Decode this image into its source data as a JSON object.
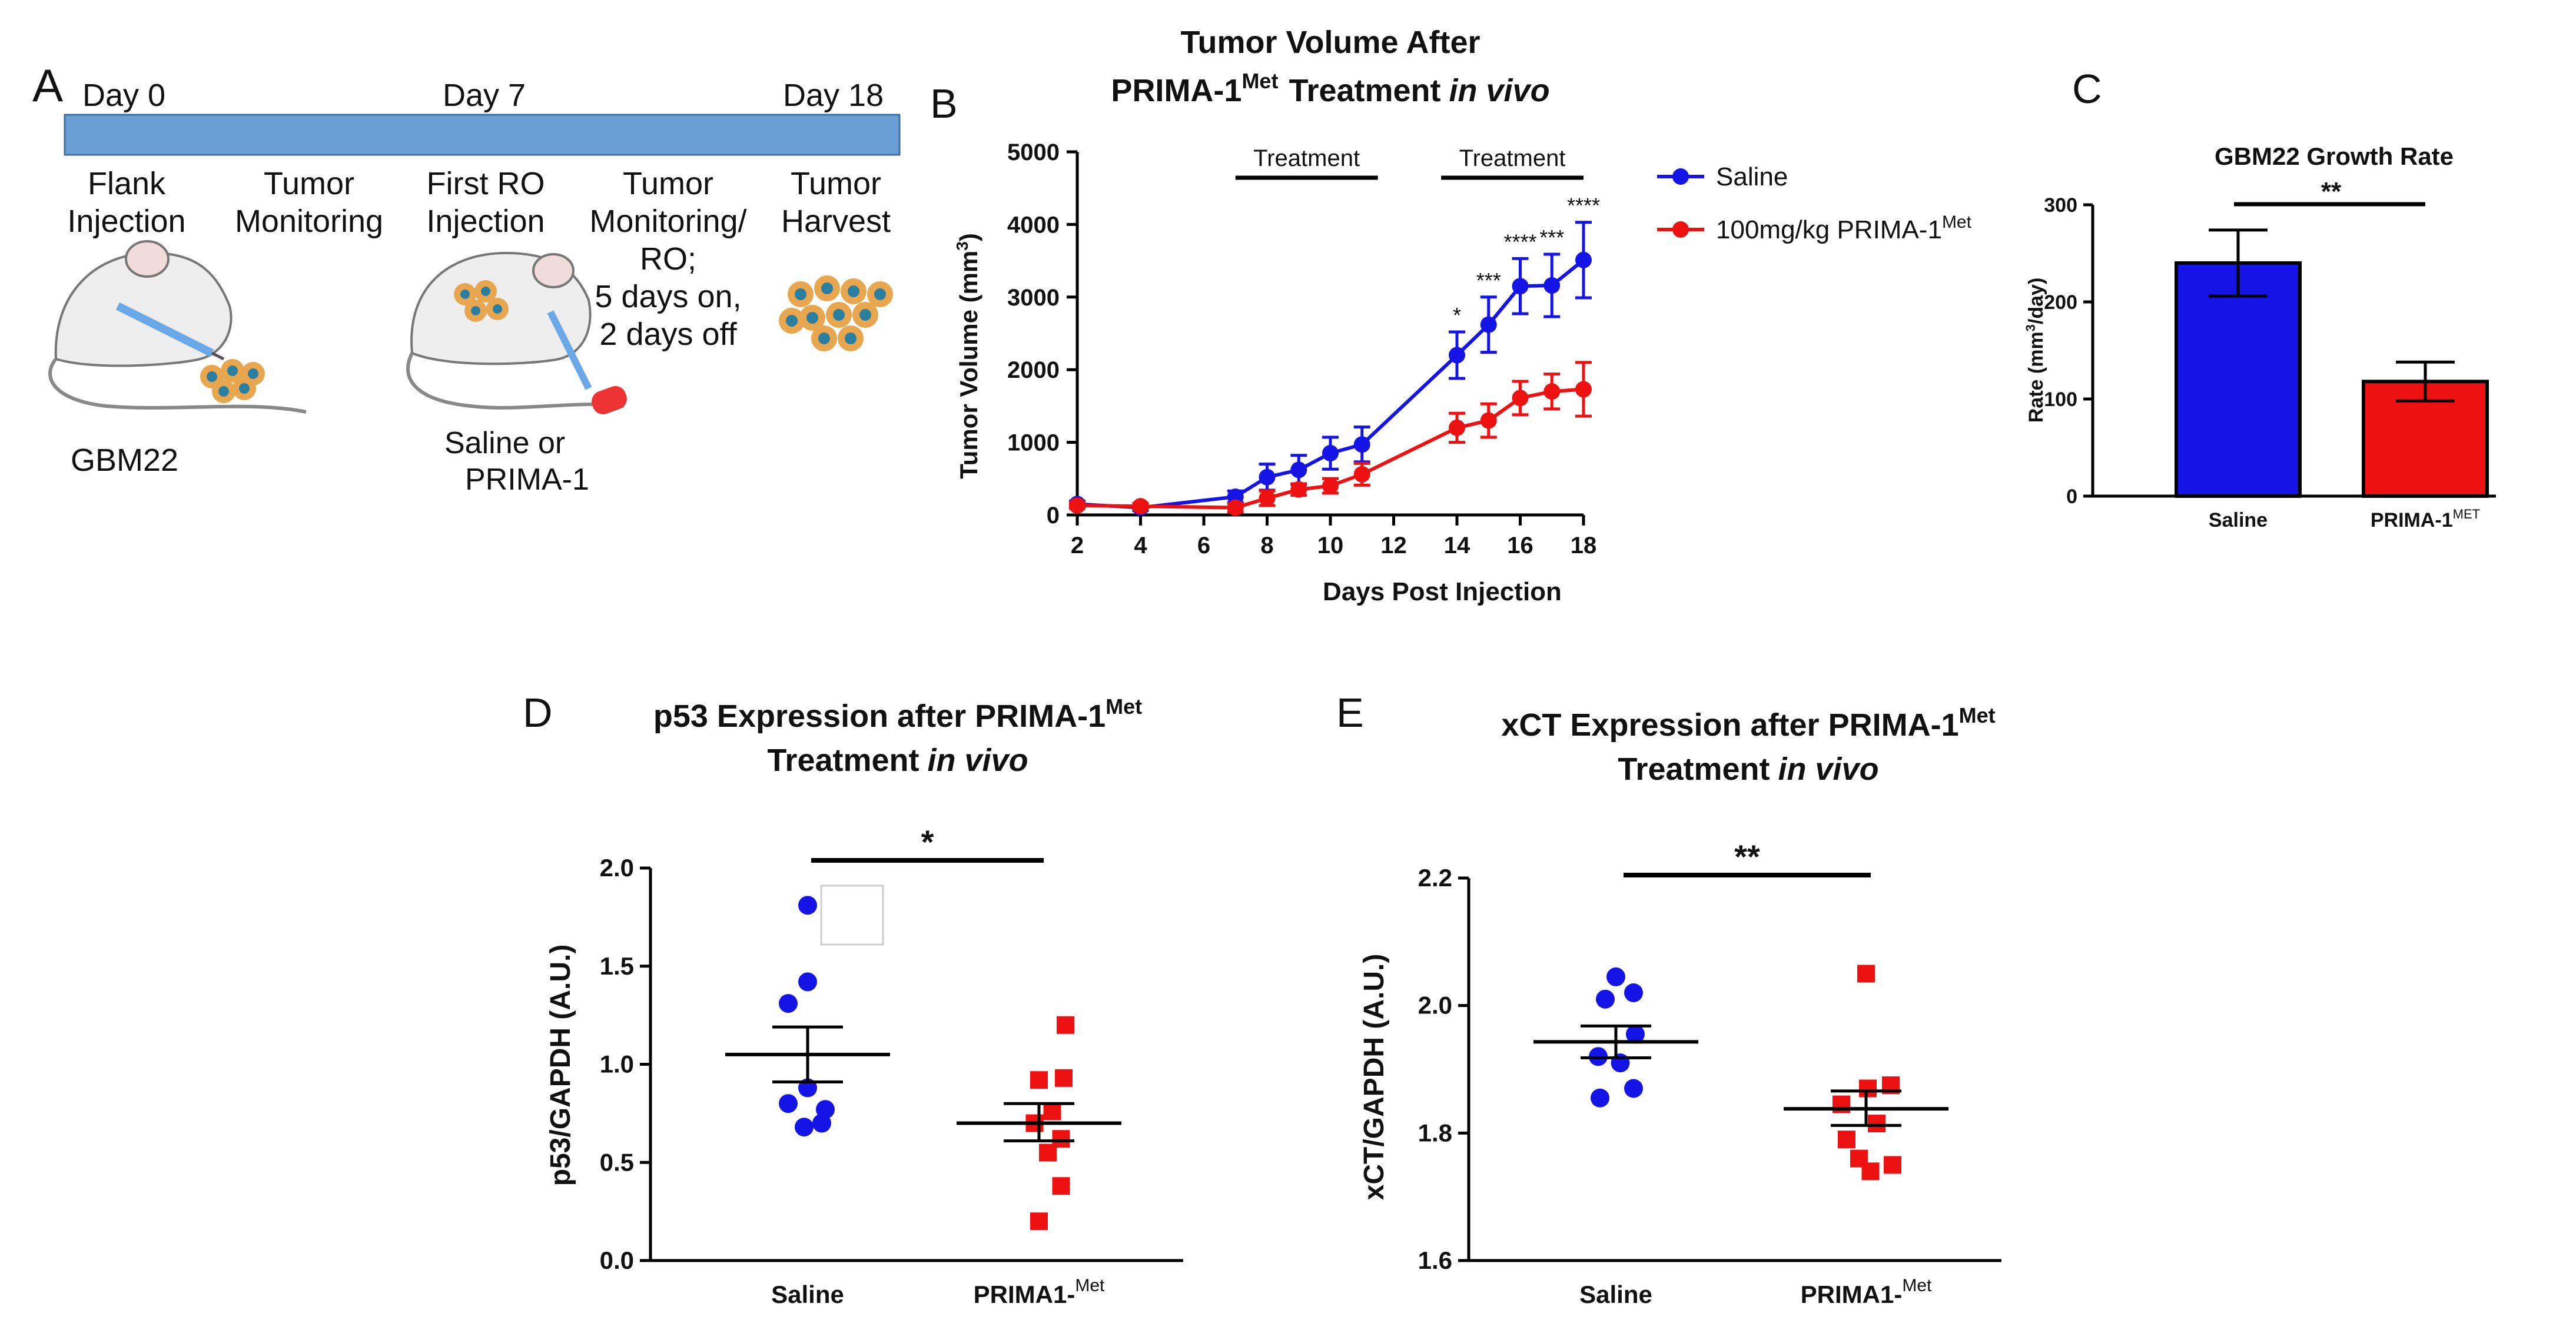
{
  "panel_labels": {
    "a": "A",
    "b": "B",
    "c": "C",
    "d": "D",
    "e": "E"
  },
  "colors": {
    "saline": "#1414e6",
    "prima": "#ee1111",
    "timeline": "#6a9fd6",
    "mouse": "#eeeeee",
    "tumor": "#e8a64f",
    "tumor_core": "#2a7fa0"
  },
  "timeline": {
    "days": [
      "Day 0",
      "Day 7",
      "Day 18"
    ],
    "steps": [
      {
        "lines": [
          "Flank",
          "Injection"
        ]
      },
      {
        "lines": [
          "Tumor",
          "Monitoring"
        ]
      },
      {
        "lines": [
          "First RO",
          "Injection"
        ]
      },
      {
        "lines": [
          "Tumor",
          "Monitoring/",
          "RO;",
          "5 days on,",
          "2 days off"
        ]
      },
      {
        "lines": [
          "Tumor",
          "Harvest"
        ]
      }
    ],
    "left_caption": "GBM22",
    "mid_caption": [
      "Saline or",
      "PRIMA-1"
    ]
  },
  "chart_data": [
    {
      "id": "B",
      "type": "line",
      "title": "Tumor Volume After",
      "title_line2": "PRIMA-1",
      "title_sup": "Met",
      "title_treatment": "Treatment",
      "title_invivo": "in vivo",
      "xlabel": "Days Post Injection",
      "ylabel": "Tumor Volume (mm",
      "ylabel_sup": "3",
      "ylabel_end": ")",
      "xlim": [
        2,
        18
      ],
      "ylim": [
        0,
        5000
      ],
      "xticks": [
        2,
        4,
        6,
        8,
        10,
        12,
        14,
        16,
        18
      ],
      "yticks": [
        0,
        1000,
        2000,
        3000,
        4000,
        5000
      ],
      "treatment_label": "Treatment",
      "treatment_windows": [
        [
          7,
          11.5
        ],
        [
          13.5,
          18
        ]
      ],
      "legend": [
        "Saline",
        "100mg/kg PRIMA-1"
      ],
      "legend_sup": "Met",
      "series": [
        {
          "name": "Saline",
          "color": "#1414e6",
          "x": [
            2,
            4,
            7,
            8,
            9,
            10,
            11,
            14,
            15,
            16,
            17,
            18
          ],
          "y": [
            150,
            100,
            250,
            520,
            620,
            850,
            970,
            2200,
            2620,
            3150,
            3160,
            3510
          ],
          "err": [
            40,
            40,
            80,
            180,
            200,
            220,
            240,
            320,
            380,
            380,
            430,
            520
          ]
        },
        {
          "name": "100mg/kg PRIMA-1Met",
          "color": "#ee1111",
          "x": [
            2,
            4,
            7,
            8,
            9,
            10,
            11,
            14,
            15,
            16,
            17,
            18
          ],
          "y": [
            130,
            120,
            100,
            230,
            350,
            400,
            560,
            1200,
            1300,
            1610,
            1700,
            1730
          ],
          "err": [
            40,
            40,
            60,
            100,
            80,
            100,
            150,
            200,
            230,
            230,
            240,
            370
          ]
        }
      ],
      "significance": [
        {
          "x": 14,
          "label": "*"
        },
        {
          "x": 15,
          "label": "***"
        },
        {
          "x": 16,
          "label": "****"
        },
        {
          "x": 17,
          "label": "***"
        },
        {
          "x": 18,
          "label": "****"
        }
      ]
    },
    {
      "id": "C",
      "type": "bar",
      "title": "GBM22 Growth Rate",
      "ylabel": "Rate (mm",
      "ylabel_sup": "3",
      "ylabel_end": "/day)",
      "ylim": [
        0,
        300
      ],
      "yticks": [
        0,
        100,
        200,
        300
      ],
      "categories": [
        "Saline",
        "PRIMA-1"
      ],
      "category_sup": [
        "",
        "MET"
      ],
      "values": [
        240,
        118
      ],
      "err": [
        34,
        20
      ],
      "colors": [
        "#1414e6",
        "#ee1111"
      ],
      "significance": "**"
    },
    {
      "id": "D",
      "type": "scatter",
      "title": "p53  Expression after PRIMA-1",
      "title_sup": "Met",
      "title_line2": "Treatment",
      "title_invivo": "in vivo",
      "ylabel": "p53/GAPDH (A.U.)",
      "ylim": [
        0.0,
        2.0
      ],
      "yticks": [
        "0.0",
        "0.5",
        "1.0",
        "1.5",
        "2.0"
      ],
      "categories": [
        "Saline",
        "PRIMA1-"
      ],
      "category_sup": [
        "",
        "Met"
      ],
      "groups": [
        {
          "name": "Saline",
          "color": "#1414e6",
          "marker": "circle",
          "points": [
            {
              "y": 1.81,
              "dx": 0.0
            },
            {
              "y": 1.42,
              "dx": 0.0
            },
            {
              "y": 1.31,
              "dx": -0.22
            },
            {
              "y": 0.88,
              "dx": 0.0
            },
            {
              "y": 0.8,
              "dx": -0.22
            },
            {
              "y": 0.77,
              "dx": 0.2
            },
            {
              "y": 0.68,
              "dx": -0.04
            },
            {
              "y": 0.7,
              "dx": 0.16
            }
          ],
          "mean": 1.05,
          "sem_low": 0.91,
          "sem_high": 1.19
        },
        {
          "name": "PRIMA1-Met",
          "color": "#ee1111",
          "marker": "square",
          "points": [
            {
              "y": 1.2,
              "dx": 0.3
            },
            {
              "y": 0.92,
              "dx": 0.0
            },
            {
              "y": 0.93,
              "dx": 0.28
            },
            {
              "y": 0.76,
              "dx": 0.15
            },
            {
              "y": 0.7,
              "dx": -0.05
            },
            {
              "y": 0.62,
              "dx": 0.25
            },
            {
              "y": 0.55,
              "dx": 0.1
            },
            {
              "y": 0.38,
              "dx": 0.25
            },
            {
              "y": 0.2,
              "dx": 0.0
            }
          ],
          "mean": 0.7,
          "sem_low": 0.61,
          "sem_high": 0.8
        }
      ],
      "significance": "*"
    },
    {
      "id": "E",
      "type": "scatter",
      "title": "xCT  Expression after PRIMA-1",
      "title_sup": "Met",
      "title_line2": "Treatment",
      "title_invivo": "in vivo",
      "ylabel": "xCT/GAPDH (A.U.)",
      "ylim": [
        1.6,
        2.2
      ],
      "yticks": [
        "1.6",
        "1.8",
        "2.0",
        "2.2"
      ],
      "categories": [
        "Saline",
        "PRIMA1-"
      ],
      "category_sup": [
        "",
        "Met"
      ],
      "groups": [
        {
          "name": "Saline",
          "color": "#1414e6",
          "marker": "circle",
          "points": [
            {
              "y": 2.045,
              "dx": 0.0
            },
            {
              "y": 2.01,
              "dx": -0.12
            },
            {
              "y": 2.02,
              "dx": 0.2
            },
            {
              "y": 1.955,
              "dx": 0.22
            },
            {
              "y": 1.92,
              "dx": -0.2
            },
            {
              "y": 1.91,
              "dx": 0.05
            },
            {
              "y": 1.87,
              "dx": 0.2
            },
            {
              "y": 1.855,
              "dx": -0.18
            }
          ],
          "mean": 1.943,
          "sem_low": 1.918,
          "sem_high": 1.968
        },
        {
          "name": "PRIMA1-Met",
          "color": "#ee1111",
          "marker": "square",
          "points": [
            {
              "y": 2.05,
              "dx": 0.0
            },
            {
              "y": 1.875,
              "dx": 0.28
            },
            {
              "y": 1.87,
              "dx": 0.02
            },
            {
              "y": 1.845,
              "dx": -0.28
            },
            {
              "y": 1.815,
              "dx": 0.12
            },
            {
              "y": 1.79,
              "dx": -0.22
            },
            {
              "y": 1.76,
              "dx": -0.08
            },
            {
              "y": 1.75,
              "dx": 0.3
            },
            {
              "y": 1.74,
              "dx": 0.05
            }
          ],
          "mean": 1.838,
          "sem_low": 1.812,
          "sem_high": 1.866
        }
      ],
      "significance": "**"
    }
  ]
}
